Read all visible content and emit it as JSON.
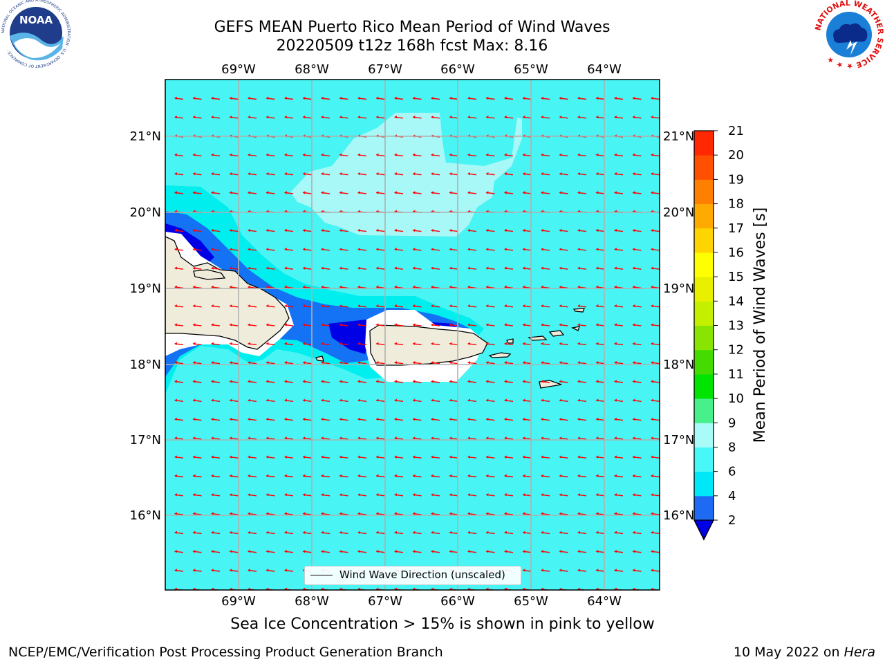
{
  "header": {
    "title_line1": "GEFS MEAN Puerto Rico Mean Period of Wind Waves",
    "title_line2": "20220509 t12z 168h fcst   Max: 8.16"
  },
  "logos": {
    "left": "NOAA",
    "left_ring_text": "NATIONAL OCEANIC AND ATMOSPHERIC ADMINISTRATION · U.S. DEPARTMENT OF COMMERCE ·",
    "right_ring_text": "NATIONAL WEATHER SERVICE ★ ★ ★"
  },
  "map": {
    "lon_labels": [
      "69°W",
      "68°W",
      "67°W",
      "66°W",
      "65°W",
      "64°W"
    ],
    "lat_labels": [
      "21°N",
      "20°N",
      "19°N",
      "18°N",
      "17°N",
      "16°N"
    ],
    "colors": {
      "land": "#efecdc",
      "ocean_6_8": "#48f4f4",
      "ocean_8_9": "#a8f8f8",
      "ocean_4_6": "#00eeee",
      "ocean_2_4": "#1473f5",
      "ocean_lt2": "#0000e6",
      "arrows": "#ff0000",
      "grid": "#b0b0b0"
    }
  },
  "legend": {
    "label": "Wind Wave Direction (unscaled)"
  },
  "colorbar": {
    "label": "Mean Period of Wind Waves [s]",
    "ticks": [
      "2",
      "4",
      "6",
      "8",
      "9",
      "10",
      "11",
      "12",
      "13",
      "14",
      "15",
      "16",
      "17",
      "18",
      "19",
      "20",
      "21"
    ],
    "colors": [
      "#1e6af3",
      "#00e8f8",
      "#48f8f8",
      "#a8fbf6",
      "#48f08c",
      "#00e400",
      "#44dc00",
      "#88e400",
      "#c4f000",
      "#e8f000",
      "#ffff00",
      "#ffd400",
      "#ffaa00",
      "#ff8000",
      "#ff5000",
      "#ff2800",
      "#ff0000"
    ],
    "under_color": "#0000e6"
  },
  "subtitle": "Sea Ice Concentration > 15% is shown in pink to yellow",
  "footer": {
    "left": "NCEP/EMC/Verification Post Processing Product Generation Branch",
    "right_prefix": "10 May 2022 on ",
    "right_host": "Hera"
  }
}
